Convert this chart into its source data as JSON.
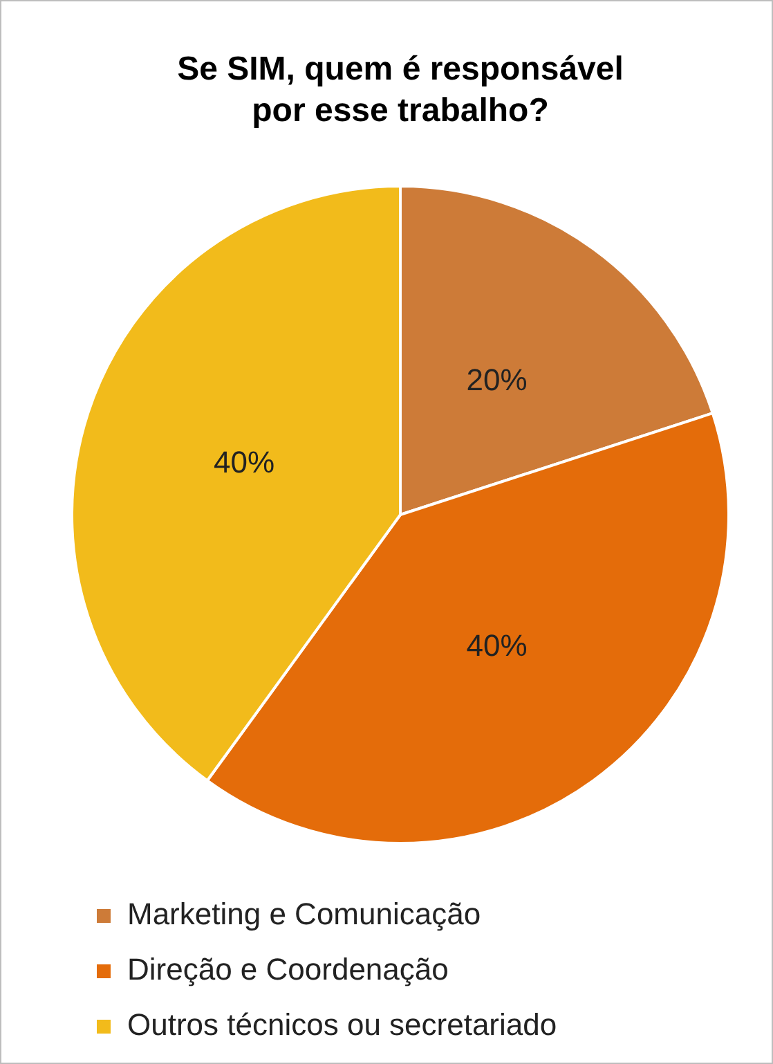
{
  "chart_data": {
    "type": "pie",
    "title": "Se SIM, quem é responsável por esse trabalho?",
    "categories": [
      "Marketing e Comunicação",
      "Direção e Coordenação",
      "Outros técnicos ou secretariado"
    ],
    "values": [
      20,
      40,
      40
    ],
    "value_labels": [
      "20%",
      "40%",
      "40%"
    ],
    "colors": [
      "#cd7b38",
      "#e46c0a",
      "#f2bb1b"
    ],
    "legend": "bottom"
  }
}
